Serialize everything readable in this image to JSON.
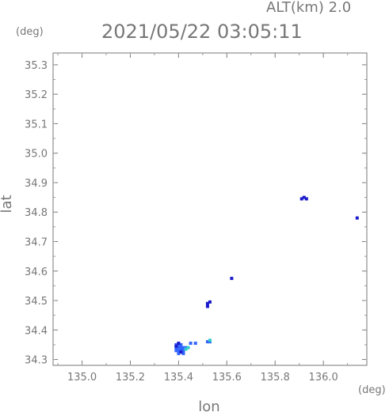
{
  "chart_data": {
    "type": "scatter",
    "title": "2021/05/22 03:05:11",
    "subtitle": "ALT(km) 2.0",
    "xlabel": "lon",
    "ylabel": "lat",
    "xunit": "(deg)",
    "yunit": "(deg)",
    "xlim": [
      134.88,
      136.18
    ],
    "ylim": [
      34.28,
      35.34
    ],
    "xticks": [
      "135.0",
      "135.2",
      "135.4",
      "135.6",
      "135.8",
      "136.0"
    ],
    "yticks": [
      "34.3",
      "34.4",
      "34.5",
      "34.6",
      "34.7",
      "34.8",
      "34.9",
      "35.0",
      "35.1",
      "35.2",
      "35.3"
    ],
    "grid": false,
    "series": [
      {
        "color": "#3366ff",
        "points": [
          [
            135.39,
            34.35
          ],
          [
            135.39,
            34.34
          ],
          [
            135.39,
            34.33
          ],
          [
            135.4,
            34.35
          ],
          [
            135.4,
            34.34
          ],
          [
            135.4,
            34.33
          ],
          [
            135.41,
            34.35
          ],
          [
            135.41,
            34.34
          ],
          [
            135.41,
            34.33
          ],
          [
            135.42,
            34.34
          ],
          [
            135.42,
            34.33
          ],
          [
            135.4,
            34.32
          ],
          [
            135.42,
            34.32
          ],
          [
            135.43,
            34.34
          ],
          [
            135.45,
            34.355
          ],
          [
            135.47,
            34.355
          ],
          [
            135.52,
            34.36
          ],
          [
            135.53,
            34.36
          ]
        ]
      },
      {
        "color": "#1a1acc",
        "points": [
          [
            135.39,
            34.345
          ],
          [
            135.41,
            34.325
          ],
          [
            135.4,
            34.355
          ],
          [
            135.52,
            34.49
          ],
          [
            135.53,
            34.495
          ],
          [
            135.52,
            34.48
          ],
          [
            135.62,
            34.575
          ],
          [
            135.91,
            34.845
          ],
          [
            135.92,
            34.85
          ],
          [
            135.93,
            34.845
          ],
          [
            136.14,
            34.78
          ]
        ]
      },
      {
        "color": "#33cccc",
        "points": [
          [
            135.44,
            34.34
          ],
          [
            135.43,
            34.335
          ],
          [
            135.53,
            34.365
          ]
        ]
      }
    ]
  }
}
